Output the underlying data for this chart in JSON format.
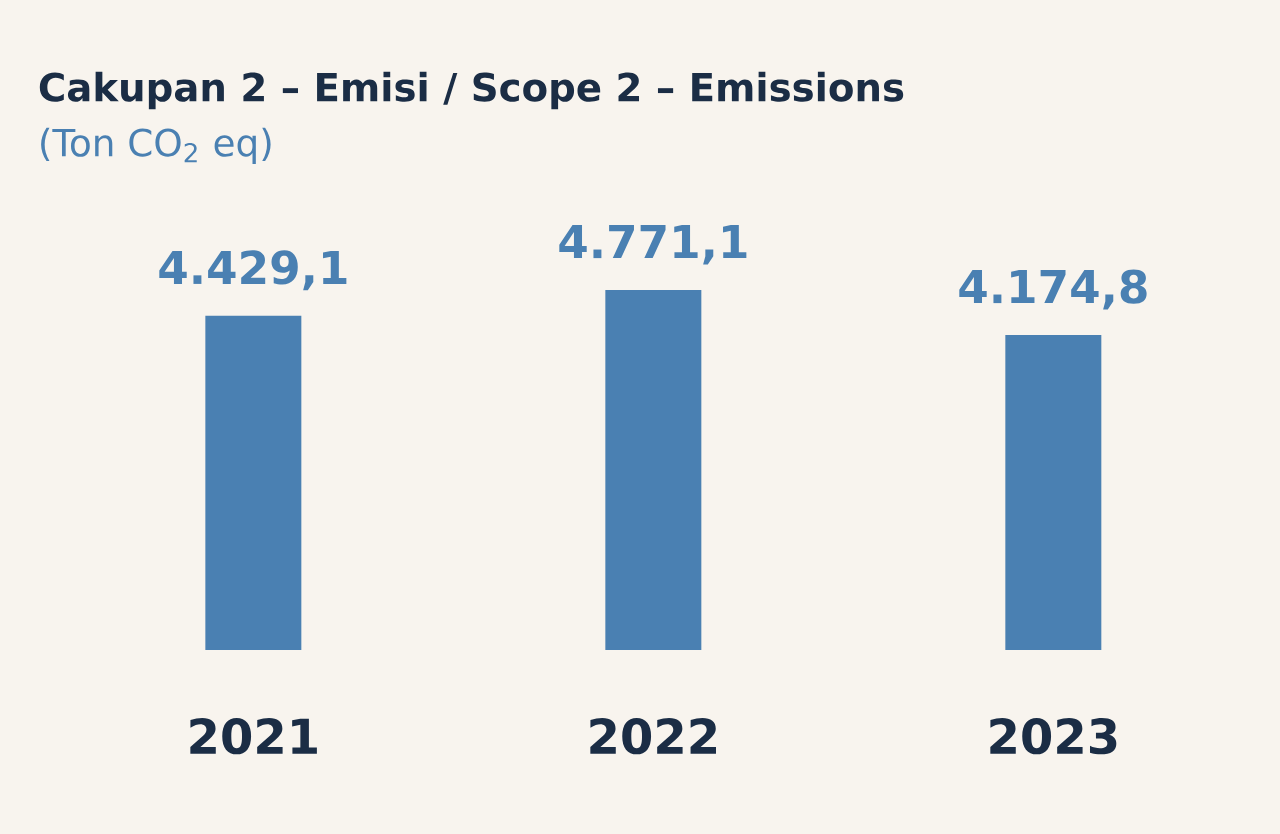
{
  "chart_data": {
    "type": "bar",
    "title": "Cakupan 2 – Emisi / Scope 2 – Emissions",
    "subtitle": "(Ton CO$_{2}$ eq)",
    "categories": [
      "2021",
      "2022",
      "2023"
    ],
    "values": [
      4429.1,
      4771.1,
      4174.8
    ],
    "value_labels": [
      "4.429,1",
      "4.771,1",
      "4.174,8"
    ],
    "color": "#4a80b2",
    "tick_labels": "x"
  }
}
